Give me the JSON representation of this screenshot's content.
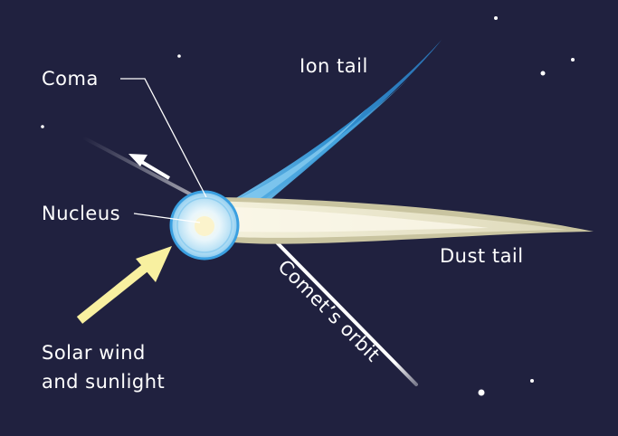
{
  "labels": {
    "coma": "Coma",
    "ion_tail": "Ion tail",
    "nucleus": "Nucleus",
    "dust_tail": "Dust tail",
    "orbit": "Comet’s orbit",
    "solar_line1": "Solar wind",
    "solar_line2": "and sunlight"
  },
  "colors": {
    "background": "#20213f",
    "ion_tail": "#2e8fd0",
    "dust_tail": "#e6e2c6",
    "coma": "#a8d8f4",
    "nucleus": "#fbf6d8",
    "sunlight_arrow": "#f8f0a0",
    "orbit_line": "#ffffff",
    "stars": "#ffffff"
  }
}
